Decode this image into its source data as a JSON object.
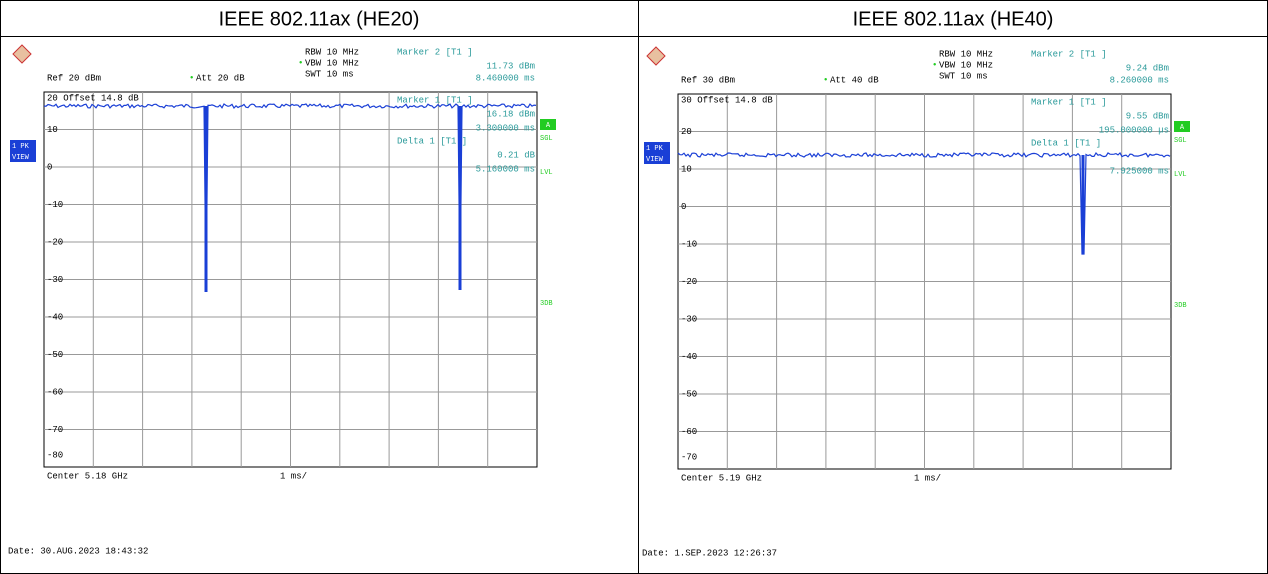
{
  "table": {
    "headers": [
      "IEEE 802.11ax (HE20)",
      "IEEE 802.11ax (HE40)"
    ],
    "panels": [
      {
        "rbw": "RBW 10 MHz",
        "vbw": "VBW 10 MHz",
        "swt": "SWT 10 ms",
        "ref": "Ref  20 dBm",
        "att": "Att  20 dB",
        "marker2": {
          "label": "Marker 2 [T1 ]",
          "value": "11.73 dBm",
          "time": "8.460000 ms"
        },
        "offset": "20  Offset  14.8 dB",
        "marker1": {
          "label": "Marker 1 [T1 ]",
          "value": "16.18 dBm",
          "time": "3.300000 ms"
        },
        "delta": {
          "label": "Delta 1 [T1 ]",
          "value": "0.21 dB",
          "time": "5.160000 ms"
        },
        "yticks": [
          "10",
          "0",
          "-10",
          "-20",
          "-30",
          "-40",
          "-50",
          "-60",
          "-70",
          "-80"
        ],
        "trace_label": [
          "1 PK",
          "VIEW"
        ],
        "side": [
          "A",
          "SGL",
          "LVL",
          "3DB"
        ],
        "center": "Center 5.18 GHz",
        "span": "1 ms/",
        "date": "Date: 30.AUG.2023  18:43:32"
      },
      {
        "rbw": "RBW 10 MHz",
        "vbw": "VBW 10 MHz",
        "swt": "SWT 10 ms",
        "ref": "Ref  30 dBm",
        "att": "Att  40 dB",
        "marker2": {
          "label": "Marker 2 [T1 ]",
          "value": "9.24 dBm",
          "time": "8.260000 ms"
        },
        "offset": "30  Offset  14.8 dB",
        "marker1": {
          "label": "Marker 1 [T1 ]",
          "value": "9.55 dBm",
          "time": "195.000000 µs"
        },
        "delta": {
          "label": "Delta 1 [T1 ]",
          "time": "7.925000 ms"
        },
        "yticks": [
          "20",
          "10",
          "0",
          "-10",
          "-20",
          "-30",
          "-40",
          "-50",
          "-60",
          "-70"
        ],
        "trace_label": [
          "1 PK",
          "VIEW"
        ],
        "side": [
          "A",
          "SGL",
          "LVL",
          "3DB"
        ],
        "center": "Center 5.19 GHz",
        "span": "1 ms/",
        "date": "Date: 1.SEP.2023  12:26:37"
      }
    ]
  }
}
